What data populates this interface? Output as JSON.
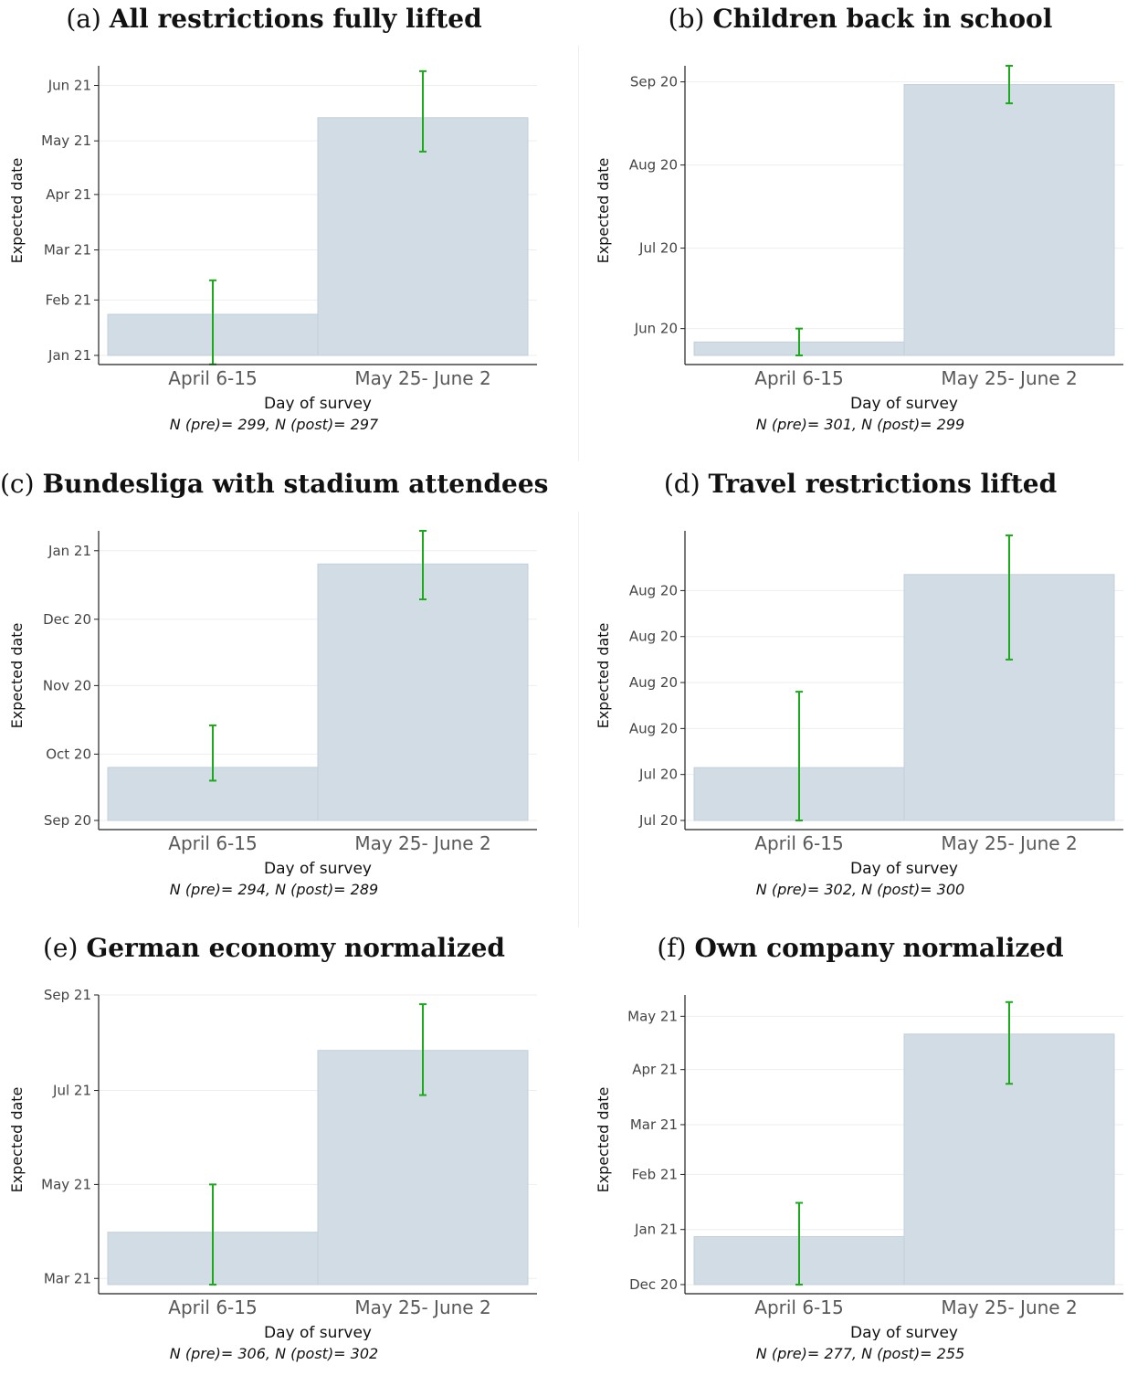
{
  "chart_data": [
    {
      "type": "bar",
      "panel_label": "(a)",
      "title": "All restrictions fully lifted",
      "xlabel": "Day of survey",
      "ylabel": "Expected date",
      "categories": [
        "April 6-15",
        "May 25- June 2"
      ],
      "values": [
        "2021-01-24",
        "2021-05-14"
      ],
      "ci_low": [
        "2020-12-27",
        "2021-04-25"
      ],
      "ci_high": [
        "2021-02-12",
        "2021-06-09"
      ],
      "yticks": [
        "2021-01-01",
        "2021-02-01",
        "2021-03-01",
        "2021-04-01",
        "2021-05-01",
        "2021-06-01"
      ],
      "ytick_labels": [
        "Jan 21",
        "Feb 21",
        "Mar 21",
        "Apr 21",
        "May 21",
        "Jun 21"
      ],
      "ylim": [
        "2021-01-01",
        "2021-06-12"
      ],
      "note": "N (pre)= 299, N (post)= 297"
    },
    {
      "type": "bar",
      "panel_label": "(b)",
      "title": "Children back in school",
      "xlabel": "Day of survey",
      "ylabel": "Expected date",
      "categories": [
        "April 6-15",
        "May 25- June 2"
      ],
      "values": [
        "2020-05-27",
        "2020-08-31"
      ],
      "ci_low": [
        "2020-05-22",
        "2020-08-24"
      ],
      "ci_high": [
        "2020-06-01",
        "2020-09-07"
      ],
      "yticks": [
        "2020-06-01",
        "2020-07-01",
        "2020-08-01",
        "2020-09-01"
      ],
      "ytick_labels": [
        "Jun 20",
        "Jul 20",
        "Aug 20",
        "Sep 20"
      ],
      "ylim": [
        "2020-05-22",
        "2020-09-07"
      ],
      "note": "N (pre)= 301, N (post)= 299"
    },
    {
      "type": "bar",
      "panel_label": "(c)",
      "title": "Bundesliga with stadium attendees",
      "xlabel": "Day of survey",
      "ylabel": "Expected date",
      "categories": [
        "April 6-15",
        "May 25- June 2"
      ],
      "values": [
        "2020-09-25",
        "2020-12-26"
      ],
      "ci_low": [
        "2020-09-19",
        "2020-12-10"
      ],
      "ci_high": [
        "2020-10-14",
        "2021-01-10"
      ],
      "yticks": [
        "2020-09-01",
        "2020-10-01",
        "2020-11-01",
        "2020-12-01",
        "2021-01-01"
      ],
      "ytick_labels": [
        "Sep 20",
        "Oct 20",
        "Nov 20",
        "Dec 20",
        "Jan 21"
      ],
      "ylim": [
        "2020-09-01",
        "2021-01-10"
      ],
      "note": "N (pre)= 294, N (post)= 289"
    },
    {
      "type": "bar",
      "panel_label": "(d)",
      "title": "Travel restrictions lifted",
      "xlabel": "Day of survey",
      "ylabel": "Expected date",
      "categories": [
        "April 6-15",
        "May 25- June 2"
      ],
      "values": [
        1.15,
        5.35
      ],
      "ci_low": [
        0.0,
        3.5
      ],
      "ci_high": [
        2.8,
        6.2
      ],
      "yticks": [
        0,
        1,
        2,
        3,
        4,
        5
      ],
      "ytick_labels": [
        "Jul 20",
        "Jul 20",
        "Aug 20",
        "Aug 20",
        "Aug 20",
        "Aug 20"
      ],
      "ylim": [
        0,
        6.3
      ],
      "note": "N (pre)= 302, N (post)= 300"
    },
    {
      "type": "bar",
      "panel_label": "(e)",
      "title": "German economy normalized",
      "xlabel": "Day of survey",
      "ylabel": "Expected date",
      "categories": [
        "April 6-15",
        "May 25- June 2"
      ],
      "values": [
        "2021-03-31",
        "2021-07-27"
      ],
      "ci_low": [
        "2021-02-25",
        "2021-06-28"
      ],
      "ci_high": [
        "2021-05-01",
        "2021-08-26"
      ],
      "yticks": [
        "2021-03-01",
        "2021-05-01",
        "2021-07-01",
        "2021-09-01"
      ],
      "ytick_labels": [
        "Mar 21",
        "May 21",
        "Jul 21",
        "Sep 21"
      ],
      "ylim": [
        "2021-02-25",
        "2021-09-01"
      ],
      "note": "N (pre)= 306, N (post)= 302"
    },
    {
      "type": "bar",
      "panel_label": "(f)",
      "title": "Own company normalized",
      "xlabel": "Day of survey",
      "ylabel": "Expected date",
      "categories": [
        "April 6-15",
        "May 25- June 2"
      ],
      "values": [
        "2020-12-28",
        "2021-04-21"
      ],
      "ci_low": [
        "2020-12-01",
        "2021-03-24"
      ],
      "ci_high": [
        "2021-01-16",
        "2021-05-09"
      ],
      "yticks": [
        "2020-12-01",
        "2021-01-01",
        "2021-02-01",
        "2021-03-01",
        "2021-04-01",
        "2021-05-01"
      ],
      "ytick_labels": [
        "Dec 20",
        "Jan 21",
        "Feb 21",
        "Mar 21",
        "Apr 21",
        "May 21"
      ],
      "ylim": [
        "2020-12-01",
        "2021-05-13"
      ],
      "note": "N (pre)= 277, N (post)= 255"
    }
  ],
  "colors": {
    "bar_fill": "#d1dce4",
    "bar_stroke": "#c3d0da",
    "error_bar": "#1aaa1a",
    "axis": "#222222",
    "grid": "#eeeeee",
    "tick_text": "#444444",
    "category_text": "#595959"
  }
}
